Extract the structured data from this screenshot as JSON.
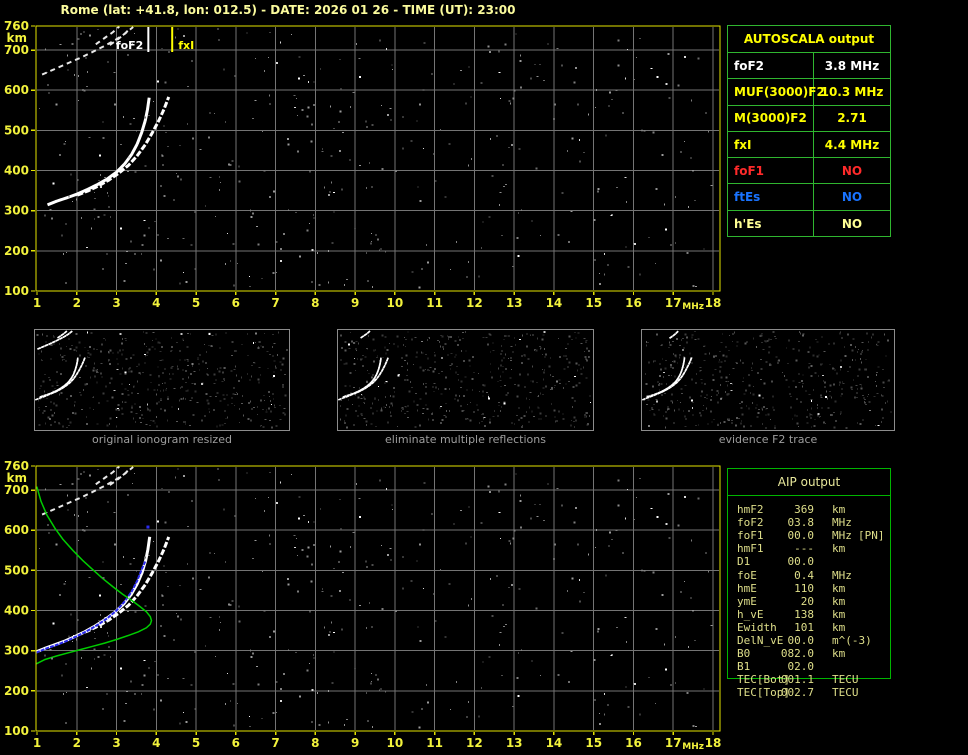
{
  "title": "Rome (lat: +41.8, lon: 012.5) - DATE: 2026 01 26 - TIME (UT): 23:00",
  "colors": {
    "title_yellow": "#FBFB9C",
    "axis_yellow": "#F2F23C",
    "plot_border_yellow": "#E3E300",
    "grid_gray": "#747474",
    "autoscala_border_green": "#2FB52F",
    "aip_border_green": "#00B400",
    "aip_text": "#DFDF8A",
    "table_yellow": "#FFFF00",
    "table_white": "#FFFFFF",
    "table_pale_yellow": "#FFFF94",
    "status_red": "#FF2A2A",
    "status_blue": "#1973FF",
    "trace_white": "#FFFFFF",
    "profile_green": "#00CC00",
    "autoscaled_blue": "#2A2AEF",
    "caption_gray": "#9E9E9E"
  },
  "autoscala": {
    "title": "AUTOSCALA output",
    "rows": [
      {
        "label": "foF2",
        "value": "3.8 MHz",
        "color": "#FFFFFF"
      },
      {
        "label": "MUF(3000)F2",
        "value": "10.3 MHz",
        "color": "#FFFF00"
      },
      {
        "label": "M(3000)F2",
        "value": "2.71",
        "color": "#FFFF00"
      },
      {
        "label": "fxI",
        "value": "4.4 MHz",
        "color": "#FFFF00"
      },
      {
        "label": "foF1",
        "value": "NO",
        "color": "#FF2A2A"
      },
      {
        "label": "ftEs",
        "value": "NO",
        "color": "#1973FF"
      },
      {
        "label": "h'Es",
        "value": "NO",
        "color": "#FFFF94"
      }
    ]
  },
  "aip": {
    "title": "AIP output",
    "rows": [
      {
        "label": "hmF2",
        "value": "369",
        "unit": "km",
        "extra": ""
      },
      {
        "label": "foF2",
        "value": "03.8",
        "unit": "MHz",
        "extra": ""
      },
      {
        "label": "foF1",
        "value": "00.0",
        "unit": "MHz",
        "extra": "[PN]"
      },
      {
        "label": "hmF1",
        "value": "---",
        "unit": "km",
        "extra": ""
      },
      {
        "label": "D1",
        "value": "00.0",
        "unit": "",
        "extra": ""
      },
      {
        "label": "foE",
        "value": "0.4",
        "unit": "MHz",
        "extra": ""
      },
      {
        "label": "hmE",
        "value": "110",
        "unit": "km",
        "extra": ""
      },
      {
        "label": "ymE",
        "value": "20",
        "unit": "km",
        "extra": ""
      },
      {
        "label": "h_vE",
        "value": "138",
        "unit": "km",
        "extra": ""
      },
      {
        "label": "Ewidth",
        "value": "101",
        "unit": "km",
        "extra": ""
      },
      {
        "label": "DelN_vE",
        "value": "00.0",
        "unit": "m^(-3)",
        "extra": ""
      },
      {
        "label": "B0",
        "value": "082.0",
        "unit": "km",
        "extra": ""
      },
      {
        "label": "B1",
        "value": "02.0",
        "unit": "",
        "extra": ""
      },
      {
        "label": "TEC[Bot]",
        "value": "001.1",
        "unit": "TECU",
        "extra": ""
      },
      {
        "label": "TEC[Top]",
        "value": "002.7",
        "unit": "TECU",
        "extra": ""
      }
    ]
  },
  "thumbnails": [
    {
      "caption": "original ionogram resized"
    },
    {
      "caption": "eliminate multiple reflections"
    },
    {
      "caption": "evidence F2 trace"
    }
  ],
  "chart_data": [
    {
      "type": "scatter",
      "title": "autoscaled ionogram (top panel)",
      "xlabel": "MHz",
      "ylabel": "km",
      "xlim": [
        1,
        18
      ],
      "ylim": [
        100,
        760
      ],
      "xticks": [
        1,
        2,
        3,
        4,
        5,
        6,
        7,
        8,
        9,
        10,
        11,
        12,
        13,
        14,
        15,
        16,
        17,
        18
      ],
      "yticks": [
        100,
        200,
        300,
        400,
        500,
        600,
        700,
        760
      ],
      "grid": true,
      "markers": [
        {
          "name": "foF2",
          "label": "foF2",
          "value_MHz": 3.8,
          "color": "#FFFFFF"
        },
        {
          "name": "fxI",
          "label": "fxI",
          "value_MHz": 4.4,
          "color": "#FFFF00"
        }
      ],
      "series": [
        {
          "name": "F2 ordinary trace",
          "color": "#FFFFFF",
          "style": "dots-bold",
          "points": [
            [
              1.3,
              316
            ],
            [
              1.5,
              324
            ],
            [
              1.75,
              332
            ],
            [
              2.0,
              341
            ],
            [
              2.25,
              352
            ],
            [
              2.5,
              364
            ],
            [
              2.75,
              378
            ],
            [
              3.0,
              396
            ],
            [
              3.2,
              416
            ],
            [
              3.38,
              440
            ],
            [
              3.52,
              466
            ],
            [
              3.63,
              494
            ],
            [
              3.72,
              524
            ],
            [
              3.78,
              552
            ],
            [
              3.82,
              580
            ]
          ]
        },
        {
          "name": "F2 extraordinary trace",
          "color": "#FFFFFF",
          "style": "dots",
          "points": [
            [
              2.05,
              340
            ],
            [
              2.3,
              350
            ],
            [
              2.55,
              362
            ],
            [
              2.8,
              376
            ],
            [
              3.05,
              393
            ],
            [
              3.3,
              413
            ],
            [
              3.52,
              437
            ],
            [
              3.72,
              464
            ],
            [
              3.9,
              494
            ],
            [
              4.07,
              526
            ],
            [
              4.2,
              554
            ],
            [
              4.3,
              580
            ]
          ]
        },
        {
          "name": "multiple reflection trace",
          "color": "#E8E8E8",
          "style": "dots-sparse",
          "points": [
            [
              1.15,
              640
            ],
            [
              1.45,
              653
            ],
            [
              1.75,
              666
            ],
            [
              2.05,
              679
            ],
            [
              2.35,
              693
            ],
            [
              2.65,
              708
            ],
            [
              2.95,
              724
            ],
            [
              3.2,
              740
            ],
            [
              3.4,
              756
            ]
          ]
        },
        {
          "name": "second hop trace a",
          "color": "#E8E8E8",
          "style": "dots-sparse",
          "points": [
            [
              2.5,
              716
            ],
            [
              2.7,
              730
            ],
            [
              2.9,
              744
            ],
            [
              3.05,
              757
            ]
          ]
        },
        {
          "name": "second hop trace b",
          "color": "#E8E8E8",
          "style": "dots-sparse",
          "points": [
            [
              2.85,
              714
            ],
            [
              3.05,
              728
            ],
            [
              3.22,
              742
            ],
            [
              3.35,
              755
            ]
          ]
        }
      ]
    },
    {
      "type": "scatter",
      "title": "autoscaled ionogram with restored trace and electron density profile (bottom panel)",
      "xlabel": "MHz",
      "ylabel": "km",
      "xlim": [
        1,
        18
      ],
      "ylim": [
        100,
        760
      ],
      "xticks": [
        1,
        2,
        3,
        4,
        5,
        6,
        7,
        8,
        9,
        10,
        11,
        12,
        13,
        14,
        15,
        16,
        17,
        18
      ],
      "yticks": [
        100,
        200,
        300,
        400,
        500,
        600,
        700,
        760
      ],
      "grid": true,
      "markers": [],
      "series": [
        {
          "name": "F2 ordinary trace",
          "color": "#FFFFFF",
          "style": "dots-bold",
          "points": [
            [
              1.0,
              298
            ],
            [
              1.2,
              306
            ],
            [
              1.45,
              315
            ],
            [
              1.7,
              324
            ],
            [
              1.95,
              335
            ],
            [
              2.2,
              347
            ],
            [
              2.45,
              361
            ],
            [
              2.7,
              377
            ],
            [
              2.95,
              395
            ],
            [
              3.18,
              416
            ],
            [
              3.37,
              440
            ],
            [
              3.52,
              466
            ],
            [
              3.64,
              494
            ],
            [
              3.73,
              524
            ],
            [
              3.79,
              552
            ],
            [
              3.83,
              580
            ]
          ]
        },
        {
          "name": "F2 extraordinary trace",
          "color": "#FFFFFF",
          "style": "dots",
          "points": [
            [
              2.05,
              340
            ],
            [
              2.3,
              350
            ],
            [
              2.55,
              362
            ],
            [
              2.8,
              376
            ],
            [
              3.05,
              393
            ],
            [
              3.3,
              413
            ],
            [
              3.52,
              437
            ],
            [
              3.72,
              464
            ],
            [
              3.9,
              494
            ],
            [
              4.07,
              526
            ],
            [
              4.2,
              554
            ],
            [
              4.3,
              580
            ]
          ]
        },
        {
          "name": "multiple reflection trace",
          "color": "#E8E8E8",
          "style": "dots-sparse",
          "points": [
            [
              1.15,
              640
            ],
            [
              1.45,
              653
            ],
            [
              1.75,
              666
            ],
            [
              2.05,
              679
            ],
            [
              2.35,
              693
            ],
            [
              2.65,
              708
            ],
            [
              2.95,
              724
            ],
            [
              3.2,
              740
            ],
            [
              3.4,
              756
            ]
          ]
        },
        {
          "name": "second hop trace a",
          "color": "#E8E8E8",
          "style": "dots-sparse",
          "points": [
            [
              2.5,
              716
            ],
            [
              2.7,
              730
            ],
            [
              2.9,
              744
            ],
            [
              3.05,
              757
            ]
          ]
        },
        {
          "name": "second hop trace b",
          "color": "#E8E8E8",
          "style": "dots-sparse",
          "points": [
            [
              2.85,
              714
            ],
            [
              3.05,
              728
            ],
            [
              3.22,
              742
            ],
            [
              3.35,
              755
            ]
          ]
        },
        {
          "name": "autoscaled F2 trace",
          "color": "#2A2AEF",
          "style": "dots-blue",
          "points": [
            [
              1.0,
              296
            ],
            [
              1.22,
              305
            ],
            [
              1.48,
              314
            ],
            [
              1.74,
              324
            ],
            [
              2.0,
              336
            ],
            [
              2.26,
              349
            ],
            [
              2.52,
              364
            ],
            [
              2.77,
              381
            ],
            [
              3.0,
              400
            ],
            [
              3.2,
              422
            ],
            [
              3.38,
              447
            ],
            [
              3.52,
              474
            ],
            [
              3.63,
              502
            ],
            [
              3.71,
              520
            ]
          ]
        },
        {
          "name": "autoscaled isolated point",
          "color": "#2A2AEF",
          "style": "point",
          "points": [
            [
              3.79,
              608
            ]
          ]
        },
        {
          "name": "electron density profile",
          "color": "#00CC00",
          "style": "line",
          "points": [
            [
              1.0,
              707
            ],
            [
              1.1,
              672
            ],
            [
              1.25,
              638
            ],
            [
              1.45,
              605
            ],
            [
              1.65,
              578
            ],
            [
              1.9,
              550
            ],
            [
              2.15,
              525
            ],
            [
              2.4,
              502
            ],
            [
              2.65,
              480
            ],
            [
              2.9,
              460
            ],
            [
              3.15,
              441
            ],
            [
              3.4,
              424
            ],
            [
              3.6,
              409
            ],
            [
              3.75,
              397
            ],
            [
              3.85,
              385
            ],
            [
              3.88,
              375
            ],
            [
              3.85,
              366
            ],
            [
              3.75,
              357
            ],
            [
              3.55,
              347
            ],
            [
              3.3,
              338
            ],
            [
              3.0,
              328
            ],
            [
              2.7,
              319
            ],
            [
              2.4,
              311
            ],
            [
              2.1,
              303
            ],
            [
              1.8,
              295
            ],
            [
              1.5,
              287
            ],
            [
              1.2,
              278
            ],
            [
              1.0,
              268
            ]
          ]
        }
      ]
    }
  ]
}
